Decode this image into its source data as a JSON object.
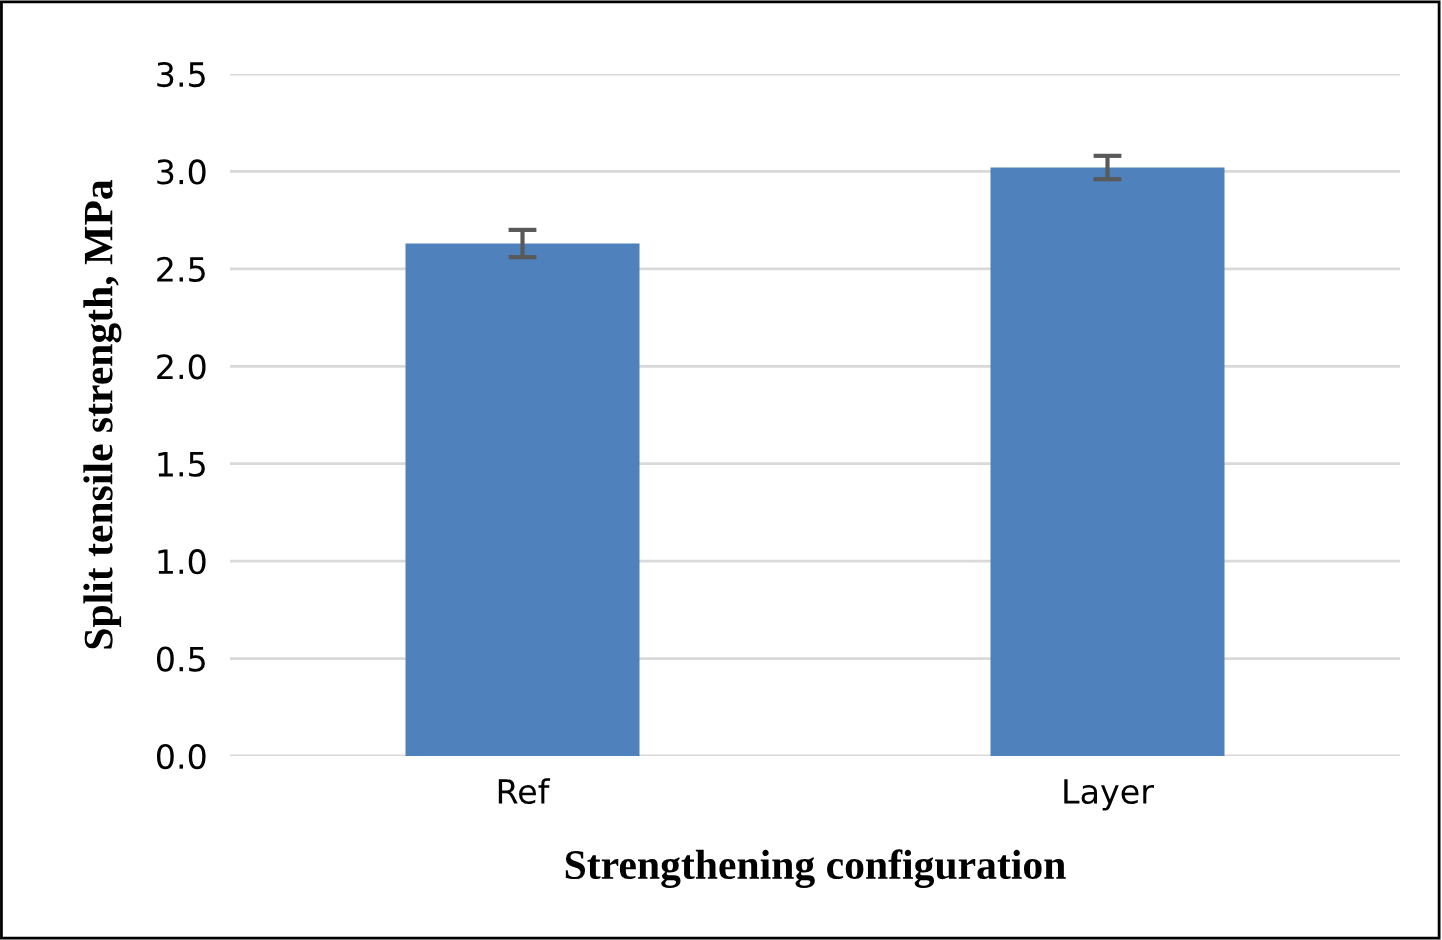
{
  "chart_data": {
    "type": "bar",
    "xlabel": "Strengthening configuration",
    "ylabel": "Split tensile strength, MPa",
    "categories": [
      "Ref",
      "Layer"
    ],
    "values": [
      2.63,
      3.02
    ],
    "errors": [
      0.07,
      0.06
    ],
    "color": "#4f81bd",
    "ylim": [
      0,
      3.5
    ],
    "yticks": [
      {
        "value": 0,
        "label": "0.0"
      },
      0.5,
      {
        "value": 1,
        "label": "1.0"
      },
      1.5,
      {
        "value": 2,
        "label": "2.0"
      },
      2.5,
      {
        "value": 3,
        "label": "3.0"
      },
      3.5
    ],
    "grid": "y",
    "legend": false
  }
}
